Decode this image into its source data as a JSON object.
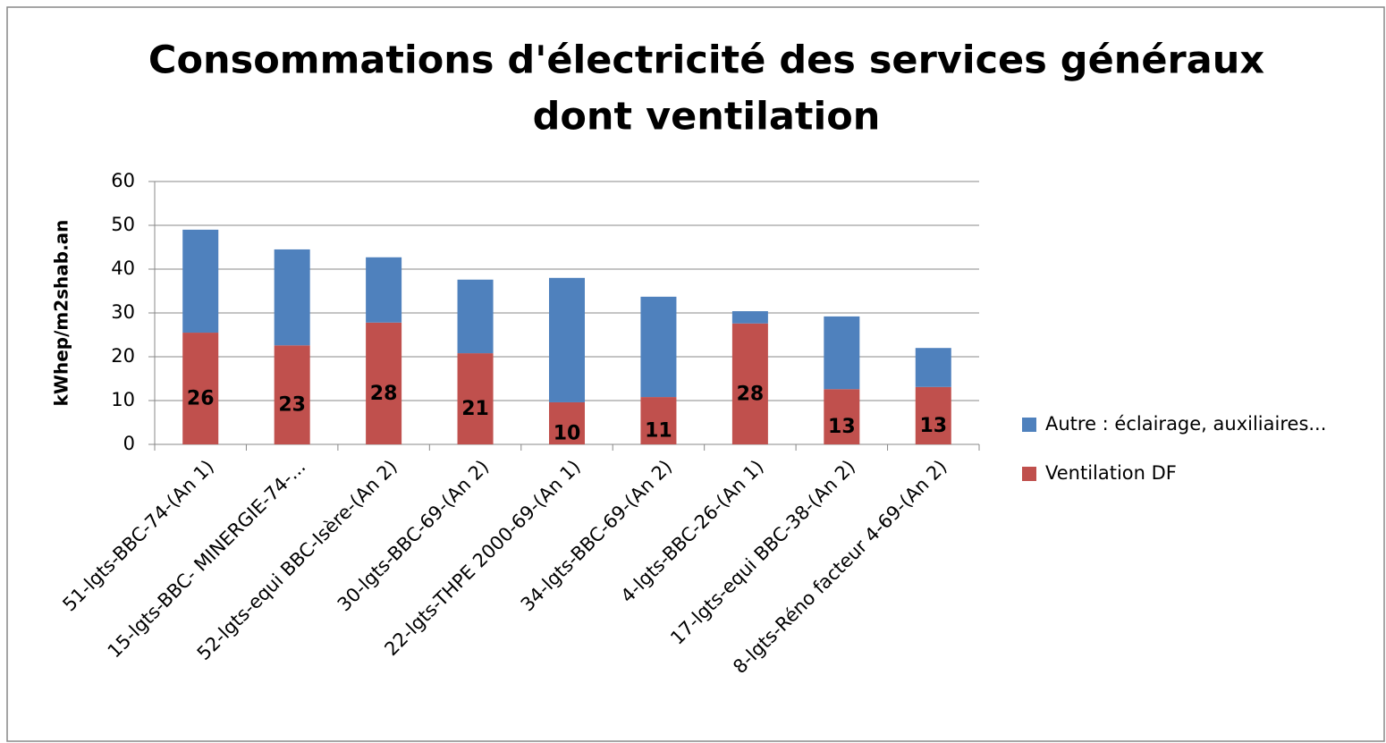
{
  "chart_data": {
    "type": "stacked_bar",
    "title": [
      "Consommations d'électricité des services généraux",
      "dont ventilation"
    ],
    "y_label": "kWhep/m2shab.an",
    "categories": [
      "51-lgts-BBC-74-(An 1)",
      "15-lgts-BBC- MINERGIE-74-...",
      "52-lgts-equi BBC-Isère-(An 2)",
      "30-lgts-BBC-69-(An 2)",
      "22-lgts-THPE 2000-69-(An 1)",
      "34-lgts-BBC-69-(An 2)",
      "4-lgts-BBC-26-(An 1)",
      "17-lgts-equi BBC-38-(An 2)",
      "8-lgts-Réno facteur 4-69-(An 2)"
    ],
    "series": [
      {
        "name": "Ventilation DF",
        "color": "#c0504d",
        "values": [
          25.5,
          22.6,
          27.8,
          20.8,
          9.6,
          10.8,
          27.6,
          12.6,
          13.1
        ],
        "value_labels": [
          "26",
          "23",
          "28",
          "21",
          "10",
          "11",
          "28",
          "13",
          "13"
        ]
      },
      {
        "name": "Autre : éclairage, auxiliaires...",
        "color": "#4f81bd",
        "values": [
          23.5,
          21.9,
          14.9,
          16.8,
          28.4,
          22.9,
          2.8,
          16.6,
          8.9
        ]
      }
    ],
    "ylim": [
      0,
      60
    ],
    "yticks": [
      0,
      10,
      20,
      30,
      40,
      50,
      60
    ],
    "grid": true
  }
}
